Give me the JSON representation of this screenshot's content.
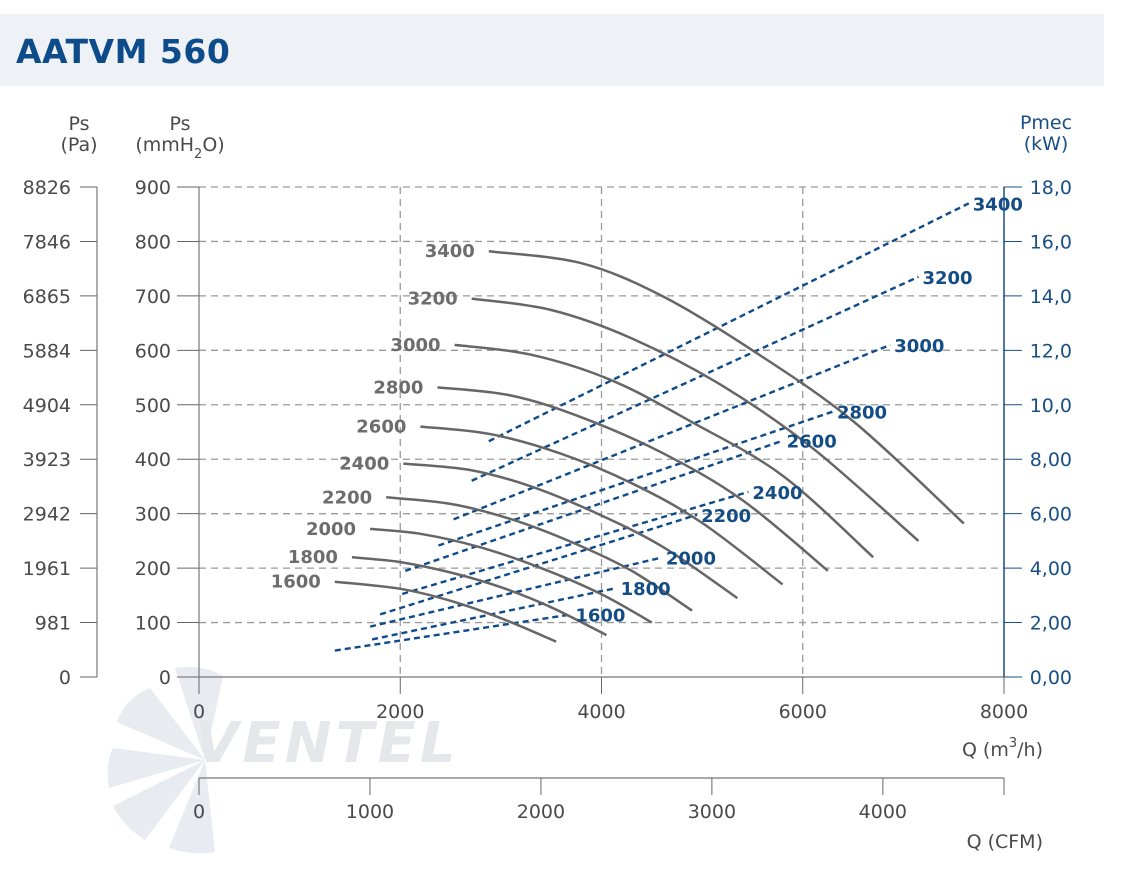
{
  "title": "AATVM 560",
  "colors": {
    "curve": "#666666",
    "power": "#0e4b8a",
    "grid": "#9a9a9a",
    "title": "#0e4b8a",
    "watermark": "#d0d5dc"
  },
  "logo_text": "VENTEL",
  "axes": {
    "left_pa": {
      "label_line1": "Ps",
      "label_line2": "(Pa)",
      "ticks": [
        "0",
        "981",
        "1961",
        "2942",
        "3923",
        "4904",
        "5884",
        "6865",
        "7846",
        "8826"
      ]
    },
    "left_mmh2o": {
      "label_line1": "Ps",
      "label_main": "(mmH",
      "label_sub": "2",
      "label_end": "O)",
      "ticks": [
        "0",
        "100",
        "200",
        "300",
        "400",
        "500",
        "600",
        "700",
        "800",
        "900"
      ],
      "ylim": [
        0,
        900
      ]
    },
    "right_kw": {
      "label_line1": "Pmec",
      "label_line2": "(kW)",
      "ticks": [
        "0,00",
        "2,00",
        "4,00",
        "6,00",
        "8,00",
        "10,0",
        "12,0",
        "14,0",
        "16,0",
        "18,0"
      ],
      "ylim": [
        0,
        18
      ]
    },
    "x_m3h": {
      "label_main": "Q (m",
      "label_sup": "3",
      "label_end": "/h)",
      "ticks": [
        "0",
        "2000",
        "4000",
        "6000",
        "8000"
      ],
      "xlim": [
        0,
        8000
      ]
    },
    "x_cfm": {
      "label": "Q (CFM)",
      "ticks": [
        "0",
        "1000",
        "2000",
        "3000",
        "4000"
      ]
    }
  },
  "chart_data": {
    "type": "line",
    "x_unit": "m3/h",
    "y_unit": "mmH2O",
    "y2_unit": "kW",
    "pressure_curves": [
      {
        "name": "1600",
        "x": [
          1350,
          2000,
          2500,
          3000,
          3550
        ],
        "y": [
          175,
          162,
          140,
          108,
          65
        ]
      },
      {
        "name": "1800",
        "x": [
          1520,
          2000,
          2500,
          3000,
          3500,
          4050
        ],
        "y": [
          220,
          211,
          192,
          165,
          128,
          77
        ]
      },
      {
        "name": "2000",
        "x": [
          1700,
          2200,
          2800,
          3400,
          4000,
          4500
        ],
        "y": [
          272,
          263,
          238,
          200,
          152,
          100
        ]
      },
      {
        "name": "2200",
        "x": [
          1860,
          2500,
          3100,
          3700,
          4300,
          4900
        ],
        "y": [
          330,
          318,
          290,
          248,
          195,
          122
        ]
      },
      {
        "name": "2400",
        "x": [
          2030,
          2700,
          3300,
          3900,
          4600,
          5350
        ],
        "y": [
          392,
          380,
          350,
          305,
          240,
          145
        ]
      },
      {
        "name": "2600",
        "x": [
          2200,
          2900,
          3600,
          4300,
          5000,
          5800
        ],
        "y": [
          460,
          446,
          410,
          356,
          283,
          170
        ]
      },
      {
        "name": "2800",
        "x": [
          2370,
          3100,
          3800,
          4600,
          5400,
          6250
        ],
        "y": [
          532,
          517,
          477,
          412,
          325,
          195
        ]
      },
      {
        "name": "3000",
        "x": [
          2540,
          3300,
          4100,
          4900,
          5800,
          6700
        ],
        "y": [
          610,
          592,
          545,
          468,
          370,
          220
        ]
      },
      {
        "name": "3200",
        "x": [
          2710,
          3500,
          4300,
          5200,
          6100,
          7150
        ],
        "y": [
          695,
          674,
          622,
          535,
          420,
          250
        ]
      },
      {
        "name": "3400",
        "x": [
          2880,
          3800,
          4600,
          5500,
          6500,
          7600
        ],
        "y": [
          782,
          760,
          700,
          600,
          470,
          282
        ]
      }
    ],
    "power_curves": [
      {
        "name": "1600",
        "x": [
          1350,
          3700
        ],
        "y": [
          0.97,
          2.3
        ]
      },
      {
        "name": "1800",
        "x": [
          1720,
          4150
        ],
        "y": [
          1.38,
          3.27
        ]
      },
      {
        "name": "2000",
        "x": [
          1700,
          4600
        ],
        "y": [
          1.85,
          4.39
        ]
      },
      {
        "name": "2200",
        "x": [
          1800,
          4950
        ],
        "y": [
          2.3,
          5.96
        ]
      },
      {
        "name": "2400",
        "x": [
          2020,
          5460
        ],
        "y": [
          3.05,
          6.8
        ]
      },
      {
        "name": "2600",
        "x": [
          2050,
          5800
        ],
        "y": [
          3.9,
          8.68
        ]
      },
      {
        "name": "2800",
        "x": [
          2380,
          6300
        ],
        "y": [
          4.83,
          9.75
        ]
      },
      {
        "name": "3000",
        "x": [
          2530,
          6870
        ],
        "y": [
          5.79,
          12.2
        ]
      },
      {
        "name": "3200",
        "x": [
          2710,
          7150
        ],
        "y": [
          7.21,
          14.7
        ]
      },
      {
        "name": "3400",
        "x": [
          2880,
          7650
        ],
        "y": [
          8.66,
          17.4
        ]
      }
    ]
  }
}
